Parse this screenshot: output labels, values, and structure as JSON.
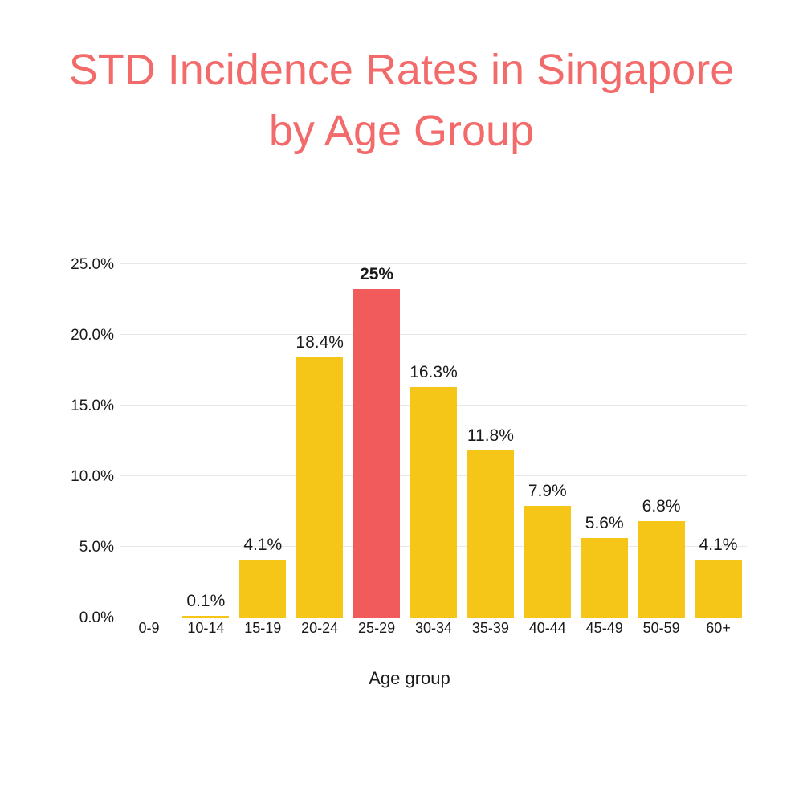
{
  "title": {
    "text": "STD Incidence Rates in Singapore by Age Group",
    "color": "#f26a6a",
    "fontsize": 54
  },
  "chart": {
    "type": "bar",
    "xlabel": "Age group",
    "ymax": 25,
    "yticks": [
      {
        "v": 0,
        "label": "0.0%"
      },
      {
        "v": 5,
        "label": "5.0%"
      },
      {
        "v": 10,
        "label": "10.0%"
      },
      {
        "v": 15,
        "label": "15.0%"
      },
      {
        "v": 20,
        "label": "20.0%"
      },
      {
        "v": 25,
        "label": "25.0%"
      }
    ],
    "bar_color": "#f5c518",
    "highlight_color": "#f25b5b",
    "grid_color": "#e8e8e8",
    "background_color": "#ffffff",
    "data": [
      {
        "cat": "0-9",
        "v": 0.0,
        "label": "",
        "hi": false
      },
      {
        "cat": "10-14",
        "v": 0.1,
        "label": "0.1%",
        "hi": false
      },
      {
        "cat": "15-19",
        "v": 4.1,
        "label": "4.1%",
        "hi": false
      },
      {
        "cat": "20-24",
        "v": 18.4,
        "label": "18.4%",
        "hi": false
      },
      {
        "cat": "25-29",
        "v": 25.0,
        "label": "25%",
        "hi": true
      },
      {
        "cat": "30-34",
        "v": 16.3,
        "label": "16.3%",
        "hi": false
      },
      {
        "cat": "35-39",
        "v": 11.8,
        "label": "11.8%",
        "hi": false
      },
      {
        "cat": "40-44",
        "v": 7.9,
        "label": "7.9%",
        "hi": false
      },
      {
        "cat": "45-49",
        "v": 5.6,
        "label": "5.6%",
        "hi": false
      },
      {
        "cat": "50-59",
        "v": 6.8,
        "label": "6.8%",
        "hi": false
      },
      {
        "cat": "60+",
        "v": 4.1,
        "label": "4.1%",
        "hi": false
      }
    ]
  }
}
